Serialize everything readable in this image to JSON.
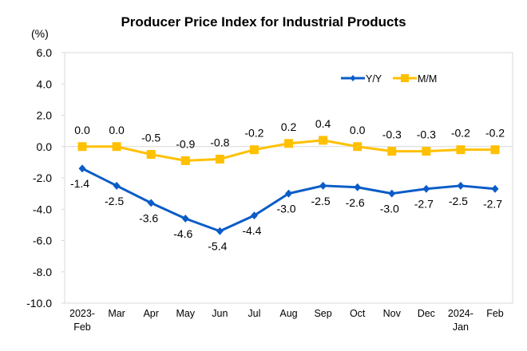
{
  "chart_data": {
    "type": "line",
    "title": "Producer Price Index for Industrial Products",
    "ylabel": "(%)",
    "xlabel": "",
    "ylim": [
      -10.0,
      6.0
    ],
    "yticks": [
      "6.0",
      "4.0",
      "2.0",
      "0.0",
      "-2.0",
      "-4.0",
      "-6.0",
      "-8.0",
      "-10.0"
    ],
    "ytick_values": [
      6,
      4,
      2,
      0,
      -2,
      -4,
      -6,
      -8,
      -10
    ],
    "categories": [
      [
        "2023-",
        "Feb"
      ],
      [
        "Mar"
      ],
      [
        "Apr"
      ],
      [
        "May"
      ],
      [
        "Jun"
      ],
      [
        "Jul"
      ],
      [
        "Aug"
      ],
      [
        "Sep"
      ],
      [
        "Oct"
      ],
      [
        "Nov"
      ],
      [
        "Dec"
      ],
      [
        "2024-",
        "Jan"
      ],
      [
        "Feb"
      ]
    ],
    "grid": false,
    "legend_position": "top-right",
    "series": [
      {
        "name": "Y/Y",
        "color": "#0A5CC7",
        "marker": "diamond",
        "label_position": "below",
        "values": [
          -1.4,
          -2.5,
          -3.6,
          -4.6,
          -5.4,
          -4.4,
          -3.0,
          -2.5,
          -2.6,
          -3.0,
          -2.7,
          -2.5,
          -2.7
        ]
      },
      {
        "name": "M/M",
        "color": "#FFC000",
        "marker": "square",
        "label_position": "above",
        "values": [
          0.0,
          0.0,
          -0.5,
          -0.9,
          -0.8,
          -0.2,
          0.2,
          0.4,
          0.0,
          -0.3,
          -0.3,
          -0.2,
          -0.2
        ]
      }
    ]
  }
}
